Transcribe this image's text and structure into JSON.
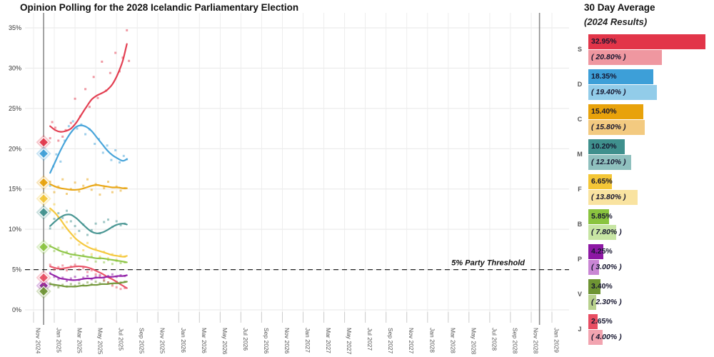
{
  "title": "Opinion Polling for the 2028 Icelandic Parliamentary Election",
  "panel": {
    "title": "30 Day Average",
    "subtitle": "(2024 Results)"
  },
  "chart_data": {
    "type": "line-scatter",
    "title": "Opinion Polling for the 2028 Icelandic Parliamentary Election",
    "xlabel": "",
    "ylabel": "",
    "ylim": [
      0,
      36.8
    ],
    "grid": true,
    "x_tick_labels": [
      "Nov 2024",
      "Jan 2025",
      "Mar 2025",
      "May 2025",
      "Jul 2025",
      "Sep 2025",
      "Nov 2025",
      "Jan 2026",
      "Mar 2026",
      "May 2026",
      "Jul 2026",
      "Sep 2026",
      "Nov 2026",
      "Jan 2027",
      "Mar 2027",
      "May 2027",
      "Jul 2027",
      "Sep 2027",
      "Nov 2027",
      "Jan 2028",
      "Mar 2028",
      "May 2028",
      "Jul 2028",
      "Sep 2028",
      "Nov 2028",
      "Jan 2029"
    ],
    "y_tick_labels": [
      "0%",
      "5%",
      "10%",
      "15%",
      "20%",
      "25%",
      "30%",
      "35%"
    ],
    "y_tick_values": [
      0,
      5,
      10,
      15,
      20,
      25,
      30,
      35
    ],
    "threshold": {
      "value": 5,
      "label": "5% Party Threshold"
    },
    "election_line_months": [
      0.97,
      48.8
    ],
    "election_marker_month": 0.97,
    "trend_x_months": [
      1.6,
      2.1,
      2.6,
      3.1,
      3.6,
      4.1,
      4.6,
      5.1,
      5.6,
      6.1,
      6.6,
      7.1,
      7.6,
      8.1,
      8.6,
      9.0
    ],
    "series": [
      {
        "letter": "S",
        "color": "#e23549",
        "color_light": "#ef97a0",
        "avg_pct": 32.95,
        "avg_label": "32.95%",
        "result_pct": 20.8,
        "result_label": "( 20.80% )",
        "trend_y": [
          22.8,
          22.3,
          22.1,
          22.2,
          22.5,
          23.2,
          24.2,
          25.2,
          26.1,
          26.6,
          26.9,
          27.3,
          28.0,
          29.2,
          30.9,
          33.0
        ],
        "scatter": [
          [
            1.6,
            21.3
          ],
          [
            1.8,
            23.3
          ],
          [
            2.1,
            22.6
          ],
          [
            2.4,
            21.0
          ],
          [
            2.8,
            21.5
          ],
          [
            3.1,
            22.3
          ],
          [
            3.6,
            23.2
          ],
          [
            4.0,
            26.2
          ],
          [
            4.5,
            24.0
          ],
          [
            5.0,
            27.4
          ],
          [
            5.4,
            25.2
          ],
          [
            5.8,
            28.9
          ],
          [
            6.2,
            26.3
          ],
          [
            6.6,
            30.8
          ],
          [
            7.0,
            27.2
          ],
          [
            7.4,
            29.4
          ],
          [
            7.9,
            31.9
          ],
          [
            8.3,
            29.6
          ],
          [
            8.6,
            31.3
          ],
          [
            9.0,
            34.7
          ],
          [
            9.2,
            30.9
          ]
        ]
      },
      {
        "letter": "D",
        "color": "#3d9fd8",
        "color_light": "#92cce9",
        "avg_pct": 18.35,
        "avg_label": "18.35%",
        "result_pct": 19.4,
        "result_label": "( 19.40% )",
        "trend_y": [
          17.0,
          18.4,
          19.8,
          21.0,
          22.0,
          22.7,
          22.9,
          22.7,
          22.2,
          21.4,
          20.6,
          19.8,
          19.2,
          18.8,
          18.5,
          18.7
        ],
        "scatter": [
          [
            1.6,
            15.4
          ],
          [
            1.9,
            17.8
          ],
          [
            2.2,
            19.3
          ],
          [
            2.6,
            18.4
          ],
          [
            3.0,
            21.0
          ],
          [
            3.4,
            22.8
          ],
          [
            3.8,
            23.4
          ],
          [
            4.2,
            22.5
          ],
          [
            4.6,
            23.0
          ],
          [
            5.0,
            21.8
          ],
          [
            5.4,
            22.4
          ],
          [
            5.9,
            20.6
          ],
          [
            6.3,
            21.2
          ],
          [
            6.7,
            19.5
          ],
          [
            7.1,
            20.4
          ],
          [
            7.5,
            18.6
          ],
          [
            7.9,
            19.8
          ],
          [
            8.3,
            18.3
          ],
          [
            8.7,
            19.1
          ],
          [
            9.0,
            18.7
          ]
        ]
      },
      {
        "letter": "C",
        "color": "#e8a20b",
        "color_light": "#f3ca80",
        "avg_pct": 15.4,
        "avg_label": "15.40%",
        "result_pct": 15.8,
        "result_label": "( 15.80% )",
        "trend_y": [
          15.6,
          15.3,
          15.1,
          15.0,
          14.9,
          14.9,
          15.0,
          15.2,
          15.4,
          15.5,
          15.4,
          15.3,
          15.2,
          15.2,
          15.1,
          15.1
        ],
        "scatter": [
          [
            1.6,
            15.9
          ],
          [
            2.0,
            14.6
          ],
          [
            2.4,
            15.3
          ],
          [
            2.8,
            16.2
          ],
          [
            3.2,
            14.4
          ],
          [
            3.6,
            15.0
          ],
          [
            4.0,
            15.8
          ],
          [
            4.4,
            14.7
          ],
          [
            4.8,
            15.4
          ],
          [
            5.2,
            16.2
          ],
          [
            5.6,
            14.9
          ],
          [
            6.0,
            15.6
          ],
          [
            6.4,
            14.3
          ],
          [
            6.8,
            15.1
          ],
          [
            7.2,
            15.9
          ],
          [
            7.6,
            14.6
          ],
          [
            8.0,
            15.3
          ],
          [
            8.4,
            14.8
          ],
          [
            8.8,
            15.1
          ]
        ]
      },
      {
        "letter": "M",
        "color": "#3f908d",
        "color_light": "#8fc0be",
        "avg_pct": 10.2,
        "avg_label": "10.20%",
        "result_pct": 12.1,
        "result_label": "( 12.10% )",
        "trend_y": [
          10.4,
          11.0,
          11.5,
          11.8,
          11.8,
          11.4,
          10.8,
          10.2,
          9.7,
          9.5,
          9.6,
          9.9,
          10.3,
          10.6,
          10.7,
          10.6
        ],
        "scatter": [
          [
            1.6,
            10.1
          ],
          [
            2.0,
            11.3
          ],
          [
            2.4,
            12.0
          ],
          [
            2.8,
            11.4
          ],
          [
            3.2,
            12.3
          ],
          [
            3.6,
            11.0
          ],
          [
            4.0,
            10.4
          ],
          [
            4.4,
            9.8
          ],
          [
            4.8,
            10.6
          ],
          [
            5.2,
            9.3
          ],
          [
            5.6,
            9.9
          ],
          [
            6.0,
            10.7
          ],
          [
            6.4,
            9.5
          ],
          [
            6.8,
            10.9
          ],
          [
            7.2,
            11.2
          ],
          [
            7.6,
            10.3
          ],
          [
            8.0,
            11.0
          ],
          [
            8.4,
            10.5
          ],
          [
            8.8,
            10.7
          ]
        ]
      },
      {
        "letter": "F",
        "color": "#f4c636",
        "color_light": "#f9e3a0",
        "avg_pct": 6.65,
        "avg_label": "6.65%",
        "result_pct": 13.8,
        "result_label": "( 13.80% )",
        "trend_y": [
          12.6,
          12.0,
          11.2,
          10.3,
          9.5,
          8.8,
          8.3,
          7.9,
          7.6,
          7.4,
          7.2,
          7.0,
          6.8,
          6.7,
          6.6,
          6.7
        ],
        "scatter": [
          [
            1.6,
            12.3
          ],
          [
            2.0,
            13.1
          ],
          [
            2.4,
            11.4
          ],
          [
            2.8,
            10.2
          ],
          [
            3.2,
            10.9
          ],
          [
            3.6,
            8.9
          ],
          [
            4.0,
            9.4
          ],
          [
            4.4,
            8.1
          ],
          [
            4.8,
            7.4
          ],
          [
            5.2,
            8.3
          ],
          [
            5.6,
            6.9
          ],
          [
            6.0,
            7.6
          ],
          [
            6.4,
            6.6
          ],
          [
            6.8,
            7.2
          ],
          [
            7.2,
            6.4
          ],
          [
            7.6,
            6.9
          ],
          [
            8.0,
            6.2
          ],
          [
            8.4,
            6.8
          ],
          [
            8.8,
            6.6
          ]
        ]
      },
      {
        "letter": "B",
        "color": "#8ac43f",
        "color_light": "#c7e5a3",
        "avg_pct": 5.85,
        "avg_label": "5.85%",
        "result_pct": 7.8,
        "result_label": "( 7.80% )",
        "trend_y": [
          7.9,
          7.6,
          7.3,
          7.1,
          6.9,
          6.8,
          6.7,
          6.6,
          6.5,
          6.4,
          6.4,
          6.3,
          6.2,
          6.1,
          6.0,
          5.9
        ],
        "scatter": [
          [
            1.6,
            8.0
          ],
          [
            2.0,
            7.3
          ],
          [
            2.4,
            7.7
          ],
          [
            2.8,
            6.9
          ],
          [
            3.2,
            7.2
          ],
          [
            3.6,
            6.6
          ],
          [
            4.0,
            7.0
          ],
          [
            4.4,
            6.4
          ],
          [
            4.8,
            6.8
          ],
          [
            5.2,
            6.2
          ],
          [
            5.6,
            6.6
          ],
          [
            6.0,
            6.0
          ],
          [
            6.4,
            6.4
          ],
          [
            6.8,
            5.9
          ],
          [
            7.2,
            6.2
          ],
          [
            7.6,
            5.7
          ],
          [
            8.0,
            6.1
          ],
          [
            8.4,
            5.8
          ],
          [
            8.8,
            5.9
          ]
        ]
      },
      {
        "letter": "P",
        "color": "#8d18a4",
        "color_light": "#c986d4",
        "avg_pct": 4.25,
        "avg_label": "4.25%",
        "result_pct": 3.0,
        "result_label": "( 3.00% )",
        "trend_y": [
          4.5,
          4.2,
          3.9,
          3.8,
          3.7,
          3.7,
          3.8,
          3.9,
          3.9,
          4.0,
          4.0,
          4.1,
          4.1,
          4.2,
          4.2,
          4.3
        ],
        "scatter": [
          [
            1.6,
            4.6
          ],
          [
            2.0,
            4.1
          ],
          [
            2.4,
            3.8
          ],
          [
            2.8,
            4.0
          ],
          [
            3.2,
            3.6
          ],
          [
            3.6,
            3.9
          ],
          [
            4.0,
            4.1
          ],
          [
            4.4,
            3.7
          ],
          [
            4.8,
            4.0
          ],
          [
            5.2,
            4.2
          ],
          [
            5.6,
            3.8
          ],
          [
            6.0,
            4.1
          ],
          [
            6.4,
            4.3
          ],
          [
            6.8,
            4.0
          ],
          [
            7.2,
            4.2
          ],
          [
            7.6,
            4.4
          ],
          [
            8.0,
            4.1
          ],
          [
            8.4,
            4.3
          ],
          [
            8.8,
            4.2
          ]
        ]
      },
      {
        "letter": "V",
        "color": "#6e9433",
        "color_light": "#b8d18d",
        "avg_pct": 3.4,
        "avg_label": "3.40%",
        "result_pct": 2.3,
        "result_label": "( 2.30% )",
        "trend_y": [
          3.2,
          3.1,
          3.0,
          2.9,
          2.9,
          2.9,
          3.0,
          3.0,
          3.1,
          3.1,
          3.2,
          3.2,
          3.3,
          3.3,
          3.4,
          3.5
        ],
        "scatter": [
          [
            1.6,
            3.3
          ],
          [
            2.0,
            3.0
          ],
          [
            2.4,
            2.8
          ],
          [
            2.8,
            3.1
          ],
          [
            3.2,
            2.9
          ],
          [
            3.6,
            3.2
          ],
          [
            4.0,
            3.0
          ],
          [
            4.4,
            3.3
          ],
          [
            4.8,
            3.1
          ],
          [
            5.2,
            3.4
          ],
          [
            5.6,
            3.2
          ],
          [
            6.0,
            3.5
          ],
          [
            6.4,
            3.3
          ],
          [
            6.8,
            3.6
          ],
          [
            7.2,
            3.4
          ],
          [
            7.6,
            3.2
          ],
          [
            8.0,
            3.5
          ],
          [
            8.4,
            3.4
          ],
          [
            8.8,
            3.5
          ]
        ]
      },
      {
        "letter": "J",
        "color": "#e84d62",
        "color_light": "#f2a4b0",
        "avg_pct": 2.65,
        "avg_label": "2.65%",
        "result_pct": 4.0,
        "result_label": "( 4.00% )",
        "trend_y": [
          5.4,
          5.2,
          5.1,
          5.2,
          5.3,
          5.4,
          5.4,
          5.3,
          5.1,
          4.8,
          4.5,
          4.1,
          3.8,
          3.4,
          3.0,
          2.7
        ],
        "scatter": [
          [
            1.6,
            5.6
          ],
          [
            2.0,
            5.0
          ],
          [
            2.4,
            5.3
          ],
          [
            2.8,
            5.5
          ],
          [
            3.2,
            4.9
          ],
          [
            3.6,
            5.4
          ],
          [
            4.0,
            5.6
          ],
          [
            4.4,
            5.0
          ],
          [
            4.8,
            5.2
          ],
          [
            5.2,
            4.7
          ],
          [
            5.6,
            4.9
          ],
          [
            6.0,
            4.4
          ],
          [
            6.4,
            4.1
          ],
          [
            6.8,
            3.7
          ],
          [
            7.2,
            3.4
          ],
          [
            7.6,
            3.0
          ],
          [
            8.0,
            2.8
          ],
          [
            8.4,
            2.6
          ],
          [
            8.8,
            2.7
          ]
        ]
      }
    ]
  }
}
